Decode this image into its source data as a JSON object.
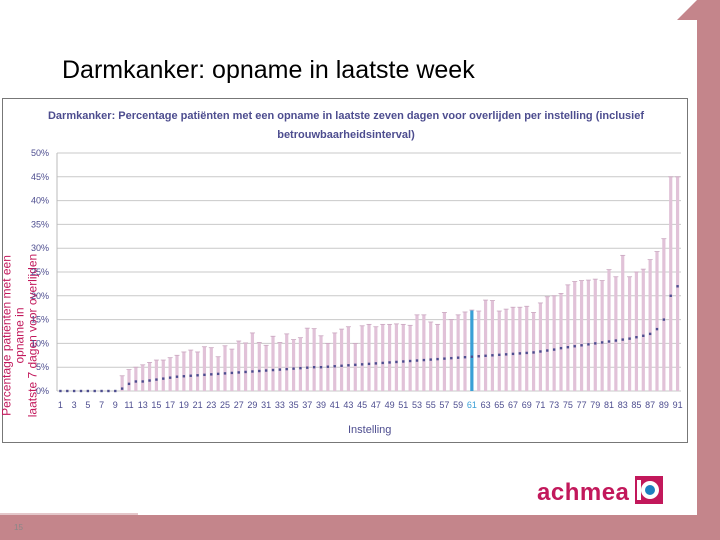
{
  "slide": {
    "title": "Darmkanker: opname in laatste week",
    "page_number": "15",
    "logo_text": "achmea",
    "background_color": "#c4858b"
  },
  "chart_data": {
    "type": "bar",
    "title_line1": "Darmkanker: Percentage patiënten met een opname in laatste zeven dagen voor overlijden per instelling (inclusief",
    "title_line2": "betrouwbaarheidsinterval)",
    "ylabel_line1": "Percentage patiënten met een opname in",
    "ylabel_line2": "laatste 7 dagen voor overlijden",
    "xlabel": "Instelling",
    "ylim": [
      0,
      50
    ],
    "ytick_values": [
      0,
      5,
      10,
      15,
      20,
      25,
      30,
      35,
      40,
      45,
      50
    ],
    "yticks": [
      "0%",
      "5%",
      "10%",
      "15%",
      "20%",
      "25%",
      "30%",
      "35%",
      "40%",
      "45%",
      "50%"
    ],
    "grid": true,
    "xticks": [
      "1",
      "3",
      "5",
      "7",
      "9",
      "11",
      "13",
      "15",
      "17",
      "19",
      "21",
      "23",
      "25",
      "27",
      "29",
      "31",
      "33",
      "35",
      "37",
      "39",
      "41",
      "43",
      "45",
      "47",
      "49",
      "51",
      "53",
      "55",
      "57",
      "59",
      "61",
      "63",
      "65",
      "67",
      "69",
      "71",
      "73",
      "75",
      "77",
      "79",
      "81",
      "83",
      "85",
      "87",
      "89",
      "91"
    ],
    "n_institutions": 91,
    "point_estimates": [
      0,
      0,
      0,
      0,
      0,
      0,
      0,
      0,
      0,
      0.5,
      1.5,
      2,
      2,
      2.2,
      2.4,
      2.6,
      2.8,
      3,
      3.1,
      3.2,
      3.3,
      3.4,
      3.5,
      3.6,
      3.7,
      3.8,
      3.9,
      4,
      4.1,
      4.2,
      4.3,
      4.4,
      4.5,
      4.6,
      4.7,
      4.8,
      4.9,
      5,
      5,
      5.1,
      5.2,
      5.3,
      5.4,
      5.5,
      5.6,
      5.7,
      5.8,
      5.9,
      6,
      6.1,
      6.2,
      6.3,
      6.4,
      6.5,
      6.6,
      6.7,
      6.8,
      6.9,
      7,
      7.1,
      7.2,
      7.3,
      7.4,
      7.5,
      7.6,
      7.7,
      7.8,
      7.9,
      8,
      8.1,
      8.3,
      8.5,
      8.7,
      9,
      9.2,
      9.4,
      9.6,
      9.8,
      10,
      10.2,
      10.4,
      10.6,
      10.8,
      11,
      11.3,
      11.6,
      12,
      13,
      15,
      20,
      22
    ],
    "upper_bounds": [
      0,
      0,
      0,
      0,
      0,
      0,
      0,
      0,
      0,
      3.2,
      4.5,
      5,
      5.5,
      6,
      6.5,
      6.5,
      7,
      7.5,
      8.2,
      8.6,
      8.2,
      9.3,
      9.1,
      7.2,
      9.5,
      8.8,
      10.5,
      10.1,
      12.2,
      10.2,
      9.6,
      11.5,
      10.2,
      12,
      10.8,
      11.2,
      13.2,
      13.1,
      11.6,
      10,
      12.2,
      13,
      13.5,
      10,
      13.7,
      14,
      13.5,
      14,
      14,
      14.1,
      14,
      13.8,
      16,
      16,
      14.5,
      14,
      16.5,
      15,
      16,
      16.6,
      17,
      16.8,
      19.1,
      19,
      16.8,
      17.2,
      17.6,
      17.6,
      17.8,
      16.5,
      18.5,
      19.8,
      20,
      20.5,
      22.3,
      23,
      23.2,
      23.3,
      23.5,
      23.2,
      25.5,
      24,
      28.5,
      24,
      25,
      25.6,
      27.6,
      29.3,
      32,
      45,
      45
    ],
    "highlighted_institution": 61,
    "series_colors": {
      "interval": "#e1c2d8",
      "point": "#4d4d8f",
      "grid": "#c9c9c9",
      "axis_text": "#4d4d8f"
    }
  }
}
